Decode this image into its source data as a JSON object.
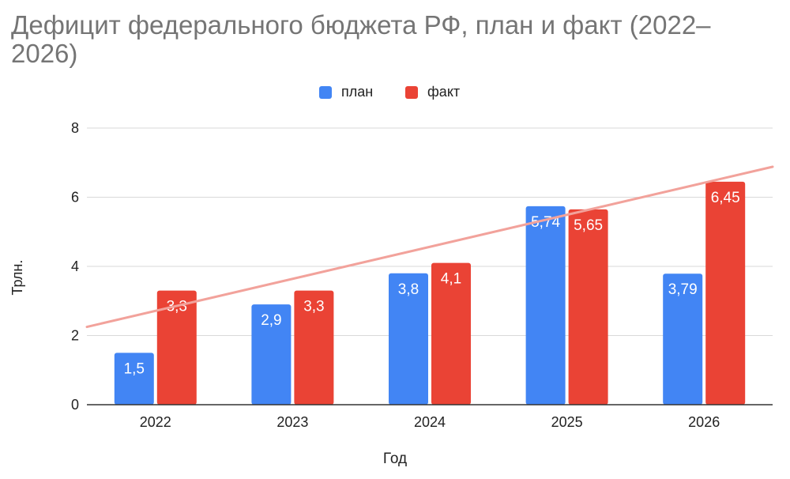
{
  "chart_data": {
    "type": "bar",
    "title": "Дефицит федерального бюджета РФ, план и факт (2022–2026)",
    "xlabel": "Год",
    "ylabel": "Трлн.",
    "categories": [
      "2022",
      "2023",
      "2024",
      "2025",
      "2026"
    ],
    "series": [
      {
        "name": "план",
        "color": "#4285f4",
        "values": [
          1.5,
          2.9,
          3.8,
          5.74,
          3.79
        ],
        "labels": [
          "1,5",
          "2,9",
          "3,8",
          "5,74",
          "3,79"
        ]
      },
      {
        "name": "факт",
        "color": "#ea4335",
        "values": [
          3.3,
          3.3,
          4.1,
          5.65,
          6.45
        ],
        "labels": [
          "3,3",
          "3,3",
          "4,1",
          "5,65",
          "6,45"
        ]
      }
    ],
    "ylim": [
      0,
      8
    ],
    "yticks": [
      "0",
      "2",
      "4",
      "6",
      "8"
    ],
    "grid": true,
    "legend_position": "top-center",
    "trendline": {
      "color": "#f2a29b",
      "start": 2.25,
      "end": 6.88
    }
  }
}
